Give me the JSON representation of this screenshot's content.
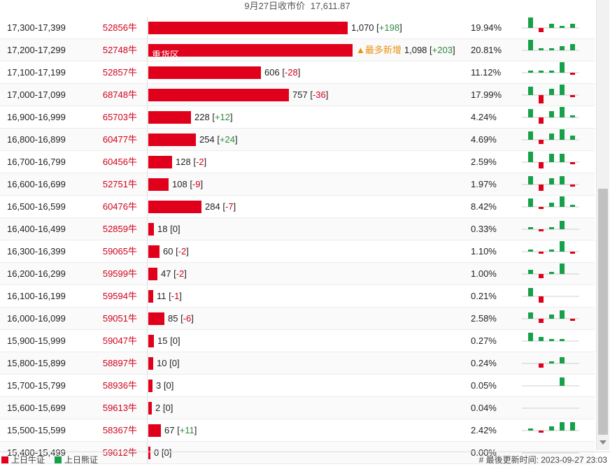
{
  "header": {
    "date_label": "9月27日收市价",
    "price": "17,611.87"
  },
  "colors": {
    "bull": "#e0001b",
    "bear": "#17a04a"
  },
  "rows": [
    {
      "range": "17,300-17,399",
      "code": "52856牛",
      "value": 1070,
      "value_text": "1,070",
      "change": "+198",
      "pct": "19.94%",
      "label": "",
      "tag": "",
      "spark": [
        5,
        -2,
        2,
        1,
        2
      ]
    },
    {
      "range": "17,200-17,299",
      "code": "52748牛",
      "value": 1098,
      "value_text": "1,098",
      "change": "+203",
      "pct": "20.81%",
      "label": "重货区",
      "tag": "▲最多新增",
      "spark": [
        5,
        1,
        1,
        2,
        3
      ]
    },
    {
      "range": "17,100-17,199",
      "code": "52857牛",
      "value": 606,
      "value_text": "606",
      "change": "-28",
      "pct": "11.12%",
      "label": "",
      "tag": "",
      "spark": [
        1,
        1,
        1,
        5,
        -1
      ]
    },
    {
      "range": "17,000-17,099",
      "code": "68748牛",
      "value": 757,
      "value_text": "757",
      "change": "-36",
      "pct": "17.99%",
      "label": "",
      "tag": "",
      "spark": [
        4,
        -4,
        3,
        5,
        -1
      ]
    },
    {
      "range": "16,900-16,999",
      "code": "65703牛",
      "value": 228,
      "value_text": "228",
      "change": "+12",
      "pct": "4.24%",
      "label": "",
      "tag": "",
      "spark": [
        4,
        -3,
        3,
        5,
        1
      ]
    },
    {
      "range": "16,800-16,899",
      "code": "60477牛",
      "value": 254,
      "value_text": "254",
      "change": "+24",
      "pct": "4.69%",
      "label": "",
      "tag": "",
      "spark": [
        4,
        -2,
        3,
        5,
        2
      ]
    },
    {
      "range": "16,700-16,799",
      "code": "60456牛",
      "value": 128,
      "value_text": "128",
      "change": "-2",
      "pct": "2.59%",
      "label": "",
      "tag": "",
      "spark": [
        5,
        -3,
        4,
        4,
        -1
      ]
    },
    {
      "range": "16,600-16,699",
      "code": "52751牛",
      "value": 108,
      "value_text": "108",
      "change": "-9",
      "pct": "1.97%",
      "label": "",
      "tag": "",
      "spark": [
        4,
        -3,
        3,
        4,
        -1
      ]
    },
    {
      "range": "16,500-16,599",
      "code": "60476牛",
      "value": 284,
      "value_text": "284",
      "change": "-7",
      "pct": "8.42%",
      "label": "",
      "tag": "",
      "spark": [
        4,
        -1,
        2,
        5,
        1
      ]
    },
    {
      "range": "16,400-16,499",
      "code": "52859牛",
      "value": 18,
      "value_text": "18",
      "change": "0",
      "pct": "0.33%",
      "label": "",
      "tag": "",
      "spark": [
        1,
        -1,
        1,
        4,
        0
      ]
    },
    {
      "range": "16,300-16,399",
      "code": "59065牛",
      "value": 60,
      "value_text": "60",
      "change": "-2",
      "pct": "1.10%",
      "label": "",
      "tag": "",
      "spark": [
        1,
        -1,
        1,
        5,
        -1
      ]
    },
    {
      "range": "16,200-16,299",
      "code": "59599牛",
      "value": 47,
      "value_text": "47",
      "change": "-2",
      "pct": "1.00%",
      "label": "",
      "tag": "",
      "spark": [
        2,
        -2,
        1,
        5,
        0
      ]
    },
    {
      "range": "16,100-16,199",
      "code": "59594牛",
      "value": 11,
      "value_text": "11",
      "change": "-1",
      "pct": "0.21%",
      "label": "",
      "tag": "",
      "spark": [
        4,
        -3,
        0,
        0,
        0
      ]
    },
    {
      "range": "16,000-16,099",
      "code": "59051牛",
      "value": 85,
      "value_text": "85",
      "change": "-6",
      "pct": "2.58%",
      "label": "",
      "tag": "",
      "spark": [
        3,
        -2,
        2,
        4,
        -1
      ]
    },
    {
      "range": "15,900-15,999",
      "code": "59047牛",
      "value": 15,
      "value_text": "15",
      "change": "0",
      "pct": "0.27%",
      "label": "",
      "tag": "",
      "spark": [
        4,
        2,
        1,
        1,
        0
      ]
    },
    {
      "range": "15,800-15,899",
      "code": "58897牛",
      "value": 10,
      "value_text": "10",
      "change": "0",
      "pct": "0.24%",
      "label": "",
      "tag": "",
      "spark": [
        0,
        -2,
        1,
        3,
        0
      ]
    },
    {
      "range": "15,700-15,799",
      "code": "58936牛",
      "value": 3,
      "value_text": "3",
      "change": "0",
      "pct": "0.05%",
      "label": "",
      "tag": "",
      "spark": [
        0,
        0,
        0,
        4,
        0
      ]
    },
    {
      "range": "15,600-15,699",
      "code": "59613牛",
      "value": 2,
      "value_text": "2",
      "change": "0",
      "pct": "0.04%",
      "label": "",
      "tag": "",
      "spark": [
        0,
        0,
        0,
        0,
        0
      ]
    },
    {
      "range": "15,500-15,599",
      "code": "58367牛",
      "value": 67,
      "value_text": "67",
      "change": "+11",
      "pct": "2.42%",
      "label": "",
      "tag": "",
      "spark": [
        1,
        -1,
        2,
        4,
        4
      ]
    },
    {
      "range": "15,400-15,499",
      "code": "59612牛",
      "value": 0,
      "value_text": "0",
      "change": "0",
      "pct": "0.00%",
      "label": "",
      "tag": "",
      "spark": [
        0,
        0,
        0,
        0,
        0
      ]
    }
  ],
  "footer": {
    "legend_bull": "上日牛证",
    "legend_bear": "上日熊证",
    "update_label": "# 最後更新时间: 2023-09-27 23:03"
  }
}
